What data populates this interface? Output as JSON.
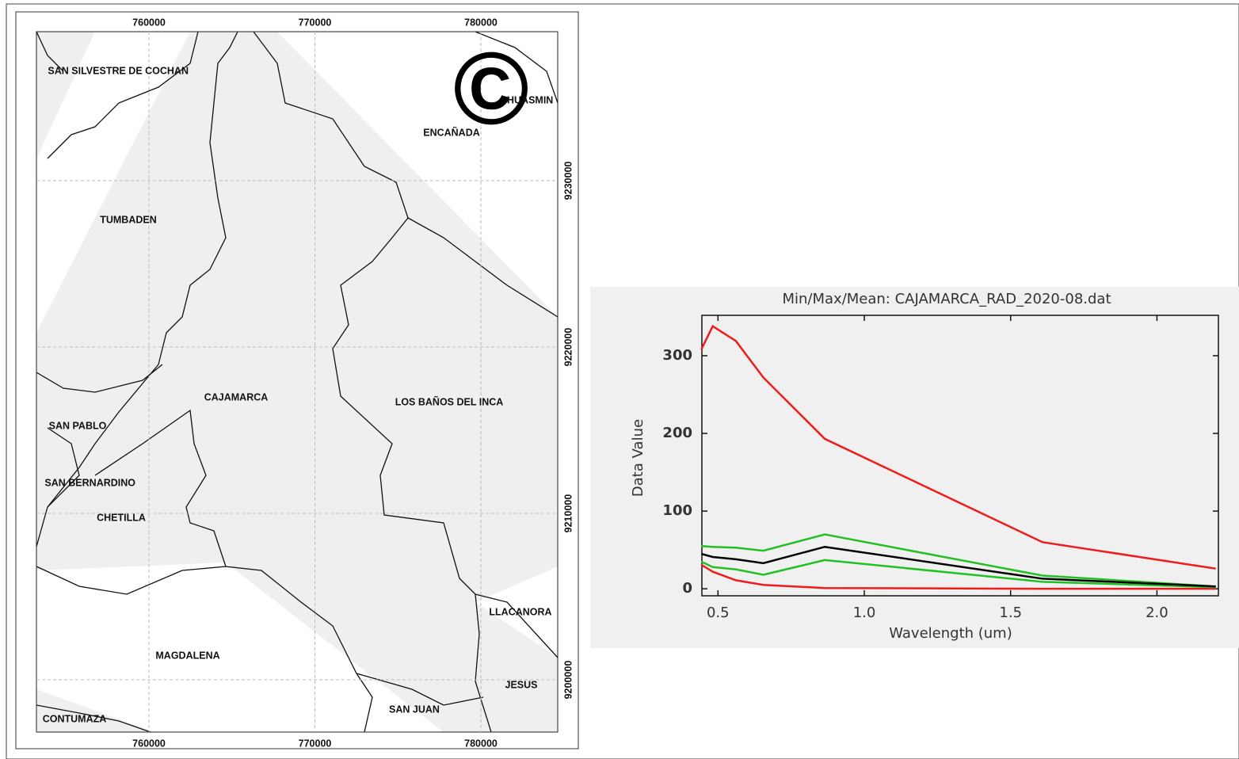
{
  "map": {
    "xlim": [
      753220,
      784630
    ],
    "ylim": [
      9196860,
      9238950
    ],
    "xticks": [
      760000,
      770000,
      780000
    ],
    "yticks": [
      9200000,
      9210000,
      9220000,
      9230000
    ],
    "watermark": "©",
    "labels": [
      "SAN SILVESTRE DE COCHAN",
      "HUASMIN",
      "ENCAÑADA",
      "TUMBADEN",
      "CAJAMARCA",
      "LOS BAÑOS DEL INCA",
      "SAN PABLO",
      "SAN BERNARDINO",
      "CHETILLA",
      "LLACANORA",
      "MAGDALENA",
      "JESUS",
      "SAN JUAN",
      "CONTUMAZA"
    ]
  },
  "chart_data": {
    "type": "line",
    "title": "Min/Max/Mean: CAJAMARCA_RAD_2020-08.dat",
    "x_label": "Wavelength (um)",
    "y_label": "Data Value",
    "x": [
      0.443,
      0.482,
      0.561,
      0.655,
      0.865,
      1.609,
      2.201
    ],
    "series": [
      {
        "color": "#ee1c1c",
        "values": [
          308,
          338,
          319,
          272,
          193,
          60,
          26
        ]
      },
      {
        "color": "#ee1c1c",
        "values": [
          31,
          22,
          11,
          5,
          1,
          0,
          0
        ]
      },
      {
        "color": "#22c022",
        "values": [
          55,
          54,
          53,
          49,
          70,
          17,
          3
        ]
      },
      {
        "color": "#22c022",
        "values": [
          35,
          28,
          25,
          18,
          37,
          9,
          2
        ]
      },
      {
        "color": "#000000",
        "values": [
          45,
          41,
          38,
          33,
          54,
          13,
          3
        ]
      }
    ],
    "xlim": [
      0.445,
      2.21
    ],
    "ylim": [
      -9,
      352
    ],
    "xticks": [
      0.5,
      {
        "value": 1,
        "label": "1.0"
      },
      1.5,
      {
        "value": 2,
        "label": "2.0"
      }
    ],
    "yticks": [
      0,
      100,
      200,
      300
    ]
  }
}
